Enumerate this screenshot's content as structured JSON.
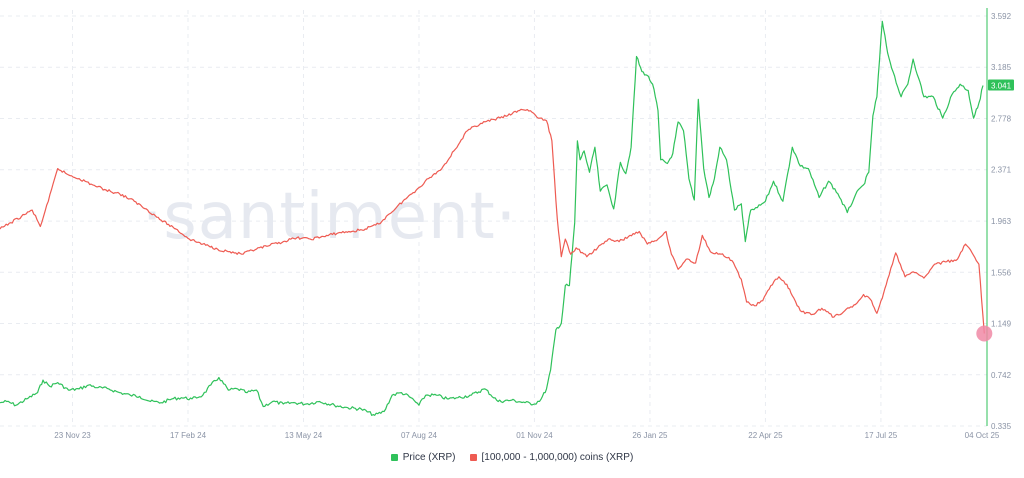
{
  "watermark": "·santiment·",
  "colors": {
    "price": "#2fc15a",
    "holders": "#ee5b52",
    "price_badge_bg": "#2fc15a",
    "marker": "#f08aa6",
    "grid": "#e9ecf1",
    "axis": "#2fc15a"
  },
  "legend": [
    {
      "label": "Price (XRP)",
      "color": "#2fc15a"
    },
    {
      "label": "[100,000 - 1,000,000) coins (XRP)",
      "color": "#ee5b52"
    }
  ],
  "price_badge": "3.041",
  "chart_data": {
    "type": "line",
    "grid": true,
    "legend_position": "bottom",
    "x_range": [
      "2023-09-30",
      "2025-10-04"
    ],
    "x_ticks": [
      {
        "date": "2023-11-23",
        "label": "23 Nov 23"
      },
      {
        "date": "2024-02-17",
        "label": "17 Feb 24"
      },
      {
        "date": "2024-05-13",
        "label": "13 May 24"
      },
      {
        "date": "2024-08-07",
        "label": "07 Aug 24"
      },
      {
        "date": "2024-11-01",
        "label": "01 Nov 24"
      },
      {
        "date": "2025-01-26",
        "label": "26 Jan 25"
      },
      {
        "date": "2025-04-22",
        "label": "22 Apr 25"
      },
      {
        "date": "2025-07-17",
        "label": "17 Jul 25"
      },
      {
        "date": "2025-10-04",
        "label": "04 Oct 25"
      }
    ],
    "y_axis": {
      "side": "right",
      "ylim": [
        0.335,
        3.592
      ],
      "ticks": [
        "3.592",
        "3.185",
        "2.778",
        "2.371",
        "1.963",
        "1.556",
        "1.149",
        "0.742",
        "0.335"
      ]
    },
    "series": [
      {
        "name": "Price (XRP)",
        "points": [
          [
            "2023-09-30",
            0.52
          ],
          [
            "2023-10-05",
            0.53
          ],
          [
            "2023-10-12",
            0.5
          ],
          [
            "2023-10-20",
            0.55
          ],
          [
            "2023-10-28",
            0.6
          ],
          [
            "2023-11-01",
            0.7
          ],
          [
            "2023-11-06",
            0.65
          ],
          [
            "2023-11-12",
            0.68
          ],
          [
            "2023-11-20",
            0.62
          ],
          [
            "2023-11-28",
            0.63
          ],
          [
            "2023-12-05",
            0.66
          ],
          [
            "2023-12-12",
            0.64
          ],
          [
            "2023-12-20",
            0.63
          ],
          [
            "2023-12-28",
            0.6
          ],
          [
            "2024-01-05",
            0.58
          ],
          [
            "2024-01-12",
            0.57
          ],
          [
            "2024-01-20",
            0.53
          ],
          [
            "2024-01-28",
            0.52
          ],
          [
            "2024-02-05",
            0.55
          ],
          [
            "2024-02-12",
            0.56
          ],
          [
            "2024-02-20",
            0.55
          ],
          [
            "2024-02-28",
            0.58
          ],
          [
            "2024-03-05",
            0.66
          ],
          [
            "2024-03-11",
            0.72
          ],
          [
            "2024-03-18",
            0.62
          ],
          [
            "2024-03-25",
            0.63
          ],
          [
            "2024-04-01",
            0.6
          ],
          [
            "2024-04-08",
            0.62
          ],
          [
            "2024-04-13",
            0.49
          ],
          [
            "2024-04-20",
            0.53
          ],
          [
            "2024-04-28",
            0.51
          ],
          [
            "2024-05-05",
            0.52
          ],
          [
            "2024-05-15",
            0.51
          ],
          [
            "2024-05-25",
            0.53
          ],
          [
            "2024-06-05",
            0.5
          ],
          [
            "2024-06-15",
            0.48
          ],
          [
            "2024-06-25",
            0.47
          ],
          [
            "2024-07-05",
            0.42
          ],
          [
            "2024-07-12",
            0.45
          ],
          [
            "2024-07-18",
            0.58
          ],
          [
            "2024-07-25",
            0.6
          ],
          [
            "2024-08-01",
            0.56
          ],
          [
            "2024-08-07",
            0.5
          ],
          [
            "2024-08-12",
            0.58
          ],
          [
            "2024-08-20",
            0.58
          ],
          [
            "2024-08-28",
            0.55
          ],
          [
            "2024-09-05",
            0.56
          ],
          [
            "2024-09-15",
            0.58
          ],
          [
            "2024-09-25",
            0.63
          ],
          [
            "2024-10-05",
            0.53
          ],
          [
            "2024-10-15",
            0.54
          ],
          [
            "2024-10-25",
            0.52
          ],
          [
            "2024-11-01",
            0.51
          ],
          [
            "2024-11-06",
            0.55
          ],
          [
            "2024-11-10",
            0.63
          ],
          [
            "2024-11-13",
            0.78
          ],
          [
            "2024-11-17",
            1.1
          ],
          [
            "2024-11-21",
            1.15
          ],
          [
            "2024-11-24",
            1.45
          ],
          [
            "2024-11-27",
            1.45
          ],
          [
            "2024-12-01",
            1.95
          ],
          [
            "2024-12-03",
            2.6
          ],
          [
            "2024-12-05",
            2.45
          ],
          [
            "2024-12-08",
            2.52
          ],
          [
            "2024-12-12",
            2.35
          ],
          [
            "2024-12-16",
            2.55
          ],
          [
            "2024-12-20",
            2.2
          ],
          [
            "2024-12-25",
            2.25
          ],
          [
            "2024-12-30",
            2.06
          ],
          [
            "2025-01-04",
            2.43
          ],
          [
            "2025-01-08",
            2.34
          ],
          [
            "2025-01-12",
            2.55
          ],
          [
            "2025-01-16",
            3.27
          ],
          [
            "2025-01-20",
            3.15
          ],
          [
            "2025-01-24",
            3.12
          ],
          [
            "2025-01-28",
            3.05
          ],
          [
            "2025-02-01",
            2.84
          ],
          [
            "2025-02-03",
            2.45
          ],
          [
            "2025-02-08",
            2.42
          ],
          [
            "2025-02-12",
            2.5
          ],
          [
            "2025-02-16",
            2.75
          ],
          [
            "2025-02-20",
            2.68
          ],
          [
            "2025-02-24",
            2.3
          ],
          [
            "2025-02-28",
            2.13
          ],
          [
            "2025-03-03",
            2.93
          ],
          [
            "2025-03-07",
            2.38
          ],
          [
            "2025-03-11",
            2.15
          ],
          [
            "2025-03-15",
            2.3
          ],
          [
            "2025-03-19",
            2.55
          ],
          [
            "2025-03-24",
            2.45
          ],
          [
            "2025-03-30",
            2.05
          ],
          [
            "2025-04-04",
            2.1
          ],
          [
            "2025-04-07",
            1.8
          ],
          [
            "2025-04-11",
            2.05
          ],
          [
            "2025-04-16",
            2.07
          ],
          [
            "2025-04-22",
            2.12
          ],
          [
            "2025-04-28",
            2.28
          ],
          [
            "2025-05-05",
            2.12
          ],
          [
            "2025-05-12",
            2.55
          ],
          [
            "2025-05-18",
            2.4
          ],
          [
            "2025-05-24",
            2.38
          ],
          [
            "2025-06-01",
            2.15
          ],
          [
            "2025-06-08",
            2.28
          ],
          [
            "2025-06-15",
            2.18
          ],
          [
            "2025-06-22",
            2.03
          ],
          [
            "2025-06-28",
            2.17
          ],
          [
            "2025-07-04",
            2.25
          ],
          [
            "2025-07-08",
            2.35
          ],
          [
            "2025-07-11",
            2.8
          ],
          [
            "2025-07-14",
            2.95
          ],
          [
            "2025-07-18",
            3.55
          ],
          [
            "2025-07-22",
            3.3
          ],
          [
            "2025-07-26",
            3.15
          ],
          [
            "2025-08-01",
            2.95
          ],
          [
            "2025-08-06",
            3.05
          ],
          [
            "2025-08-10",
            3.25
          ],
          [
            "2025-08-14",
            3.1
          ],
          [
            "2025-08-18",
            2.95
          ],
          [
            "2025-08-25",
            2.95
          ],
          [
            "2025-09-01",
            2.78
          ],
          [
            "2025-09-08",
            2.97
          ],
          [
            "2025-09-14",
            3.05
          ],
          [
            "2025-09-20",
            3.0
          ],
          [
            "2025-09-24",
            2.78
          ],
          [
            "2025-09-28",
            2.9
          ],
          [
            "2025-10-01",
            3.04
          ]
        ]
      },
      {
        "name": "[100,000 - 1,000,000) coins (XRP)",
        "points": [
          [
            "2023-09-30",
            1.9
          ],
          [
            "2023-10-08",
            1.95
          ],
          [
            "2023-10-16",
            2.0
          ],
          [
            "2023-10-24",
            2.05
          ],
          [
            "2023-10-30",
            1.92
          ],
          [
            "2023-11-05",
            2.12
          ],
          [
            "2023-11-12",
            2.38
          ],
          [
            "2023-11-20",
            2.33
          ],
          [
            "2023-11-28",
            2.3
          ],
          [
            "2023-12-08",
            2.25
          ],
          [
            "2023-12-18",
            2.21
          ],
          [
            "2023-12-28",
            2.18
          ],
          [
            "2024-01-08",
            2.12
          ],
          [
            "2024-01-18",
            2.05
          ],
          [
            "2024-01-28",
            1.97
          ],
          [
            "2024-02-08",
            1.9
          ],
          [
            "2024-02-18",
            1.82
          ],
          [
            "2024-02-28",
            1.78
          ],
          [
            "2024-03-10",
            1.74
          ],
          [
            "2024-03-18",
            1.72
          ],
          [
            "2024-03-28",
            1.7
          ],
          [
            "2024-04-08",
            1.74
          ],
          [
            "2024-04-18",
            1.77
          ],
          [
            "2024-04-28",
            1.8
          ],
          [
            "2024-05-08",
            1.83
          ],
          [
            "2024-05-18",
            1.82
          ],
          [
            "2024-05-28",
            1.84
          ],
          [
            "2024-06-08",
            1.87
          ],
          [
            "2024-06-18",
            1.88
          ],
          [
            "2024-06-28",
            1.9
          ],
          [
            "2024-07-08",
            1.94
          ],
          [
            "2024-07-16",
            2.02
          ],
          [
            "2024-07-26",
            2.12
          ],
          [
            "2024-08-06",
            2.22
          ],
          [
            "2024-08-14",
            2.3
          ],
          [
            "2024-08-24",
            2.38
          ],
          [
            "2024-09-02",
            2.52
          ],
          [
            "2024-09-12",
            2.68
          ],
          [
            "2024-09-22",
            2.74
          ],
          [
            "2024-10-02",
            2.77
          ],
          [
            "2024-10-12",
            2.8
          ],
          [
            "2024-10-22",
            2.85
          ],
          [
            "2024-10-29",
            2.84
          ],
          [
            "2024-11-04",
            2.78
          ],
          [
            "2024-11-10",
            2.76
          ],
          [
            "2024-11-14",
            2.6
          ],
          [
            "2024-11-18",
            1.98
          ],
          [
            "2024-11-21",
            1.68
          ],
          [
            "2024-11-24",
            1.82
          ],
          [
            "2024-11-28",
            1.7
          ],
          [
            "2024-12-02",
            1.75
          ],
          [
            "2024-12-10",
            1.68
          ],
          [
            "2024-12-18",
            1.75
          ],
          [
            "2024-12-26",
            1.82
          ],
          [
            "2025-01-03",
            1.8
          ],
          [
            "2025-01-10",
            1.84
          ],
          [
            "2025-01-18",
            1.88
          ],
          [
            "2025-01-24",
            1.78
          ],
          [
            "2025-02-01",
            1.82
          ],
          [
            "2025-02-07",
            1.88
          ],
          [
            "2025-02-11",
            1.7
          ],
          [
            "2025-02-16",
            1.58
          ],
          [
            "2025-02-22",
            1.66
          ],
          [
            "2025-03-01",
            1.63
          ],
          [
            "2025-03-06",
            1.85
          ],
          [
            "2025-03-12",
            1.72
          ],
          [
            "2025-03-20",
            1.7
          ],
          [
            "2025-03-28",
            1.65
          ],
          [
            "2025-04-04",
            1.5
          ],
          [
            "2025-04-08",
            1.32
          ],
          [
            "2025-04-14",
            1.29
          ],
          [
            "2025-04-20",
            1.33
          ],
          [
            "2025-04-26",
            1.45
          ],
          [
            "2025-05-02",
            1.52
          ],
          [
            "2025-05-08",
            1.46
          ],
          [
            "2025-05-12",
            1.37
          ],
          [
            "2025-05-18",
            1.25
          ],
          [
            "2025-05-26",
            1.22
          ],
          [
            "2025-06-03",
            1.27
          ],
          [
            "2025-06-12",
            1.2
          ],
          [
            "2025-06-20",
            1.25
          ],
          [
            "2025-06-28",
            1.3
          ],
          [
            "2025-07-04",
            1.38
          ],
          [
            "2025-07-10",
            1.33
          ],
          [
            "2025-07-14",
            1.23
          ],
          [
            "2025-07-18",
            1.35
          ],
          [
            "2025-07-22",
            1.5
          ],
          [
            "2025-07-28",
            1.71
          ],
          [
            "2025-08-04",
            1.52
          ],
          [
            "2025-08-10",
            1.56
          ],
          [
            "2025-08-18",
            1.51
          ],
          [
            "2025-08-26",
            1.62
          ],
          [
            "2025-09-04",
            1.64
          ],
          [
            "2025-09-12",
            1.66
          ],
          [
            "2025-09-18",
            1.78
          ],
          [
            "2025-09-24",
            1.69
          ],
          [
            "2025-09-28",
            1.62
          ],
          [
            "2025-10-02",
            1.07
          ]
        ]
      }
    ],
    "last_point_marker": {
      "series": "[100,000 - 1,000,000) coins (XRP)",
      "date": "2025-10-02",
      "value": 1.07
    }
  }
}
